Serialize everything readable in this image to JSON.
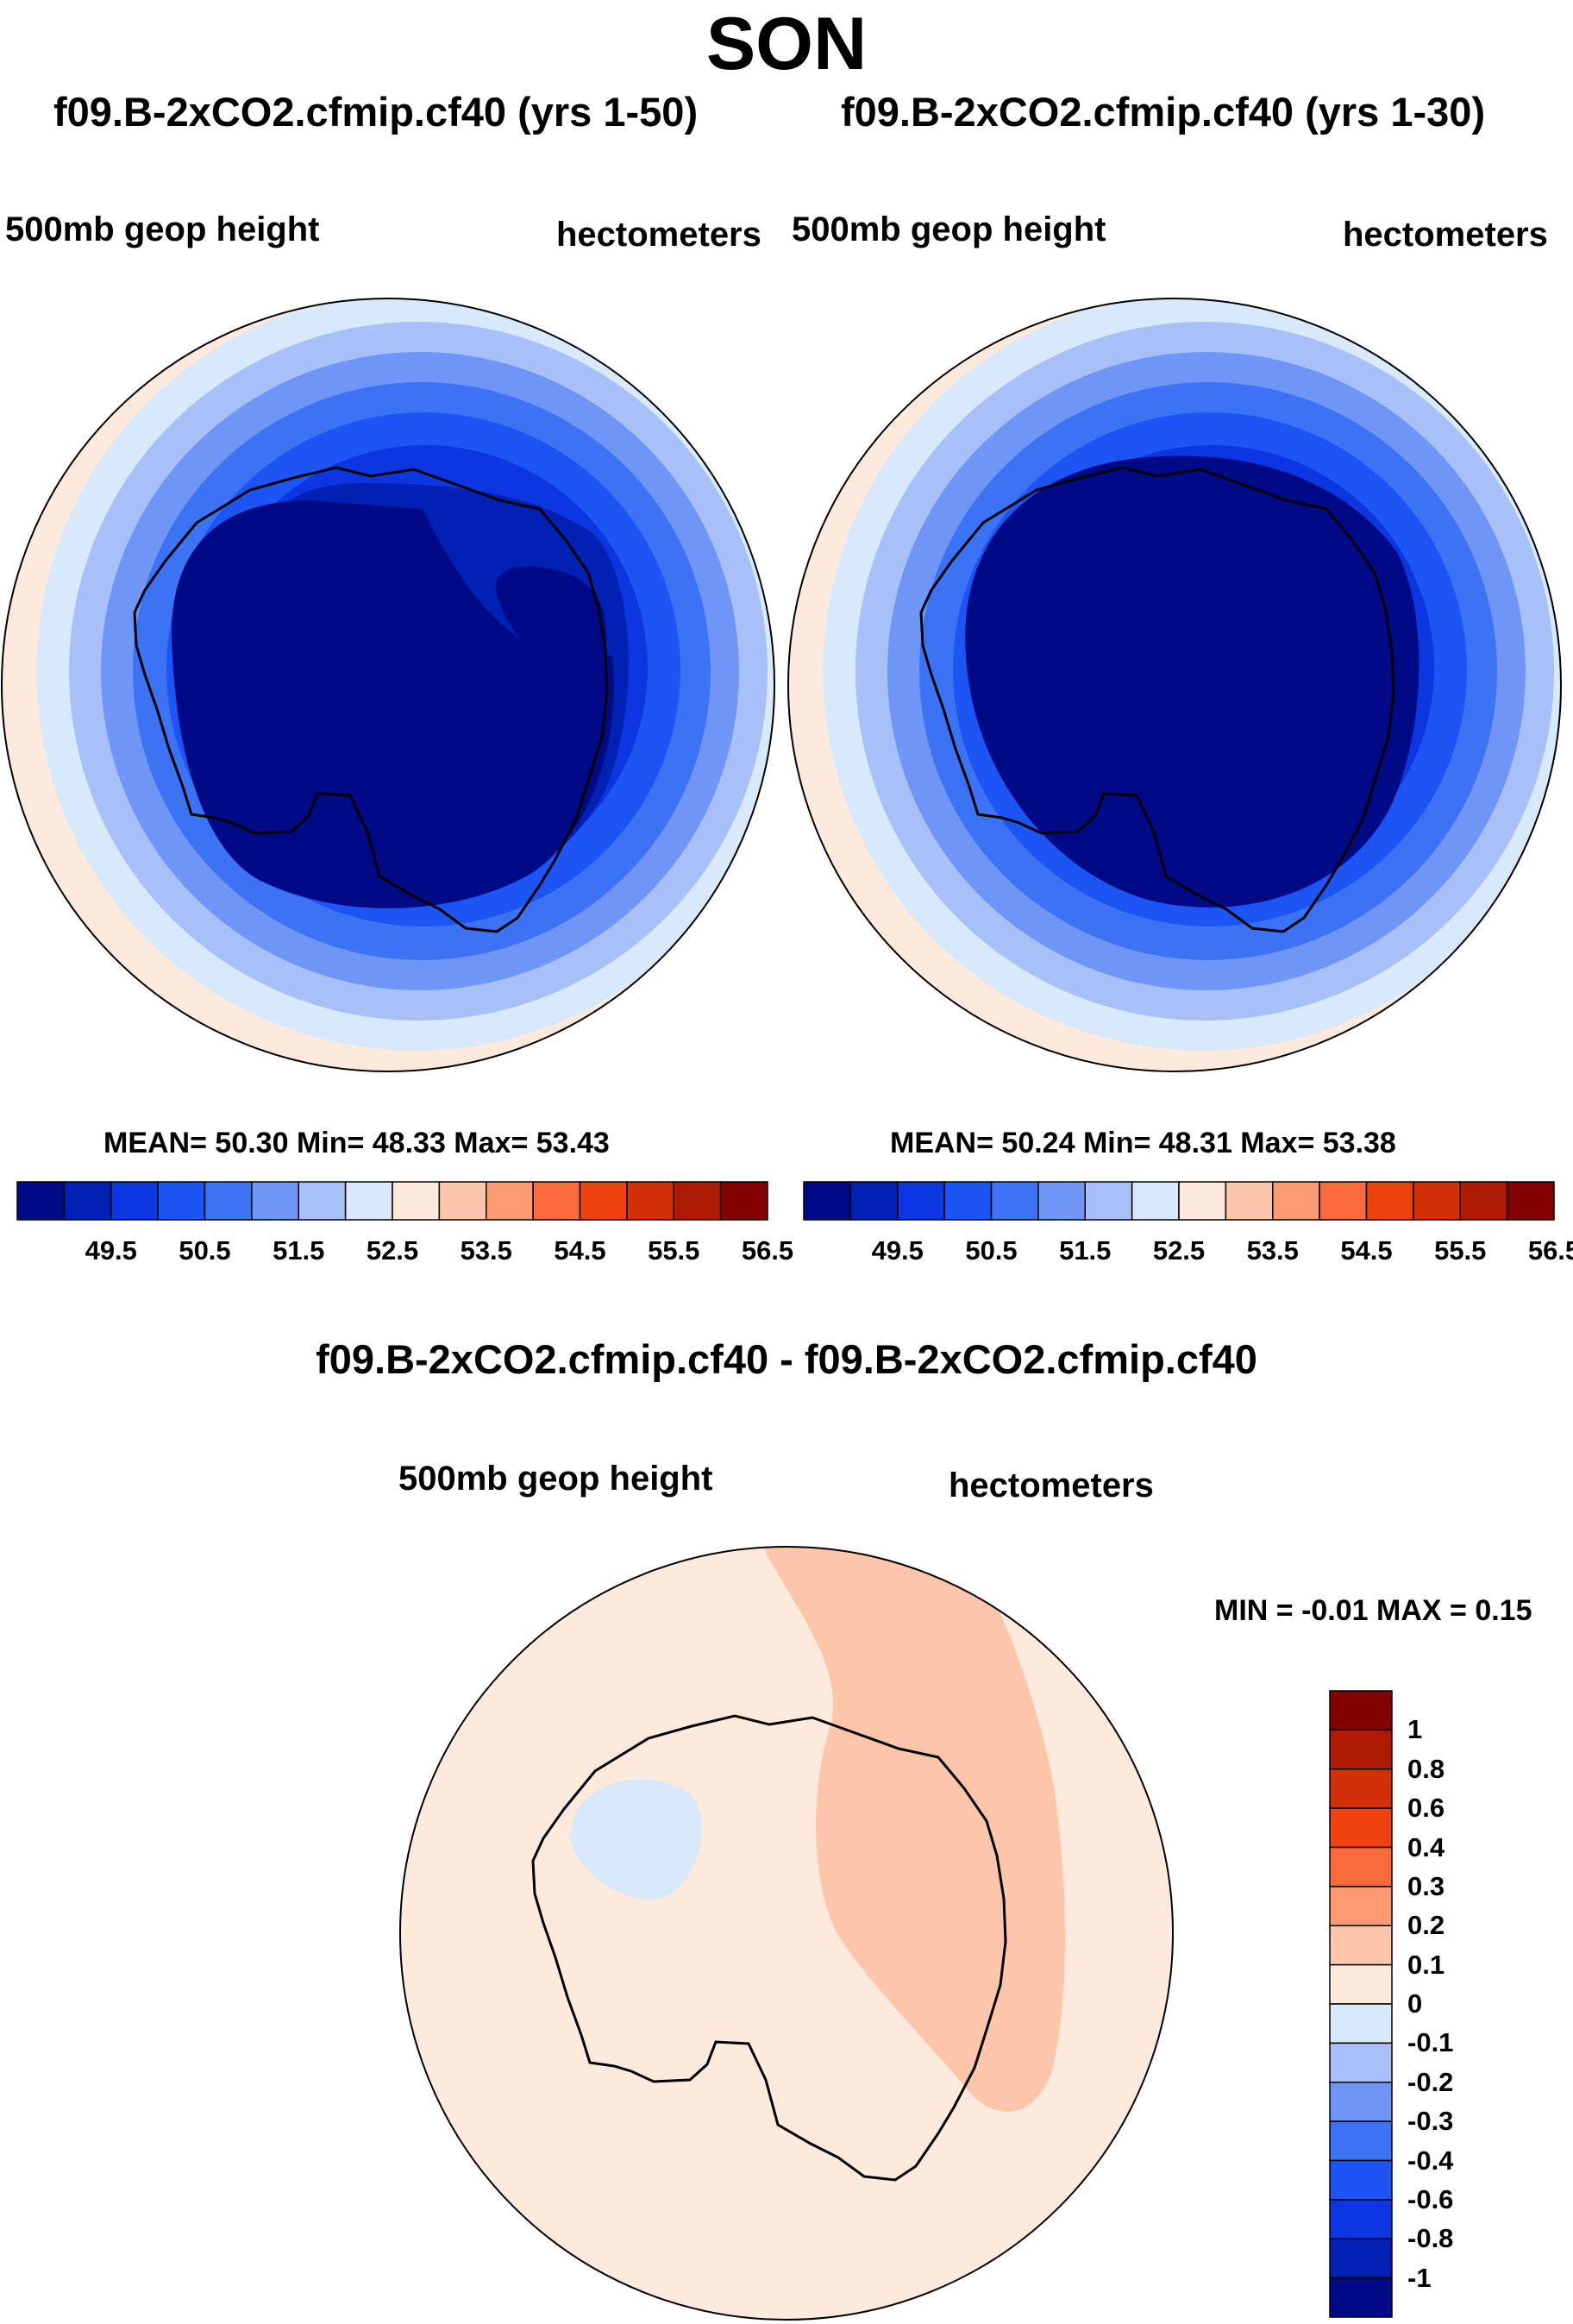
{
  "title": "SON",
  "panels": [
    {
      "case_title": "f09.B-2xCO2.cfmip.cf40 (yrs 1-50)",
      "field": "500mb geop height",
      "units": "hectometers",
      "stats": {
        "mean": "50.30",
        "min": "48.33",
        "max": "53.43"
      },
      "stats_text": "MEAN=  50.30  Min=  48.33  Max=  53.43"
    },
    {
      "case_title": "f09.B-2xCO2.cfmip.cf40 (yrs 1-30)",
      "field": "500mb geop height",
      "units": "hectometers",
      "stats": {
        "mean": "50.24",
        "min": "48.31",
        "max": "53.38"
      },
      "stats_text": "MEAN=  50.24  Min=  48.31  Max=  53.38"
    }
  ],
  "colorbar": {
    "colors": [
      "#000a86",
      "#0021b4",
      "#0c36e0",
      "#1d55f5",
      "#3c73f5",
      "#6f96f6",
      "#a7c1f8",
      "#d8e9fb",
      "#feeadc",
      "#fdc5aa",
      "#fc9a74",
      "#fb6a3a",
      "#f0420e",
      "#d22f06",
      "#ae1a04",
      "#820000"
    ],
    "ticks": [
      "49.5",
      "50.5",
      "51.5",
      "52.5",
      "53.5",
      "54.5",
      "55.5",
      "56.5"
    ]
  },
  "difference": {
    "title": "f09.B-2xCO2.cfmip.cf40 - f09.B-2xCO2.cfmip.cf40",
    "field": "500mb geop height",
    "units": "hectometers",
    "minmax_text": "MIN =  -0.01 MAX =   0.15",
    "colorbar": {
      "colors": [
        "#820000",
        "#ae1a04",
        "#d22f06",
        "#f0420e",
        "#fb6a3a",
        "#fc9a74",
        "#fdc5aa",
        "#feeadc",
        "#d8e9fb",
        "#a7c1f8",
        "#6f96f6",
        "#3c73f5",
        "#1d55f5",
        "#0c36e0",
        "#0021b4",
        "#000a86"
      ],
      "ticks": [
        "1",
        "0.8",
        "0.6",
        "0.4",
        "0.3",
        "0.2",
        "0.1",
        "0",
        "-0.1",
        "-0.2",
        "-0.3",
        "-0.4",
        "-0.6",
        "-0.8",
        "-1"
      ]
    }
  }
}
